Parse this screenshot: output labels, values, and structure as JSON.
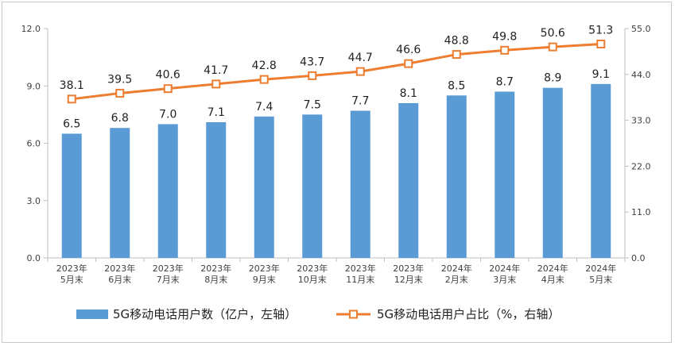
{
  "chart_data": {
    "type": "bar+line",
    "categories": [
      [
        "2023年",
        "5月末"
      ],
      [
        "2023年",
        "6月末"
      ],
      [
        "2023年",
        "7月末"
      ],
      [
        "2023年",
        "8月末"
      ],
      [
        "2023年",
        "9月末"
      ],
      [
        "2023年",
        "10月末"
      ],
      [
        "2023年",
        "11月末"
      ],
      [
        "2023年",
        "12月末"
      ],
      [
        "2024年",
        "2月末"
      ],
      [
        "2024年",
        "3月末"
      ],
      [
        "2024年",
        "4月末"
      ],
      [
        "2024年",
        "5月末"
      ]
    ],
    "series": [
      {
        "name": "5G移动电话用户数（亿户，左轴）",
        "type": "bar",
        "axis": "left",
        "color": "#5b9bd5",
        "values": [
          6.5,
          6.8,
          7.0,
          7.1,
          7.4,
          7.5,
          7.7,
          8.1,
          8.5,
          8.7,
          8.9,
          9.1
        ],
        "labels": [
          "6.5",
          "6.8",
          "7.0",
          "7.1",
          "7.4",
          "7.5",
          "7.7",
          "8.1",
          "8.5",
          "8.7",
          "8.9",
          "9.1"
        ]
      },
      {
        "name": "5G移动电话用户占比（%，右轴）",
        "type": "line",
        "axis": "right",
        "color": "#ed7d31",
        "values": [
          38.1,
          39.5,
          40.6,
          41.7,
          42.8,
          43.7,
          44.7,
          46.6,
          48.8,
          49.8,
          50.6,
          51.3
        ],
        "labels": [
          "38.1",
          "39.5",
          "40.6",
          "41.7",
          "42.8",
          "43.7",
          "44.7",
          "46.6",
          "48.8",
          "49.8",
          "50.6",
          "51.3"
        ]
      }
    ],
    "left_axis": {
      "ylim": [
        0,
        12
      ],
      "ticks": [
        "0.0",
        "3.0",
        "6.0",
        "9.0",
        "12.0"
      ]
    },
    "right_axis": {
      "ylim": [
        0,
        55
      ],
      "ticks": [
        "0.0",
        "11.0",
        "22.0",
        "33.0",
        "44.0",
        "55.0"
      ]
    },
    "grid": false,
    "legend_position": "bottom"
  }
}
